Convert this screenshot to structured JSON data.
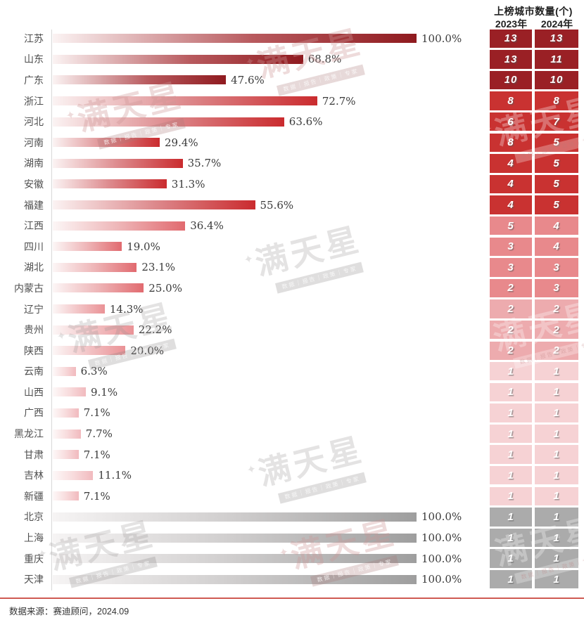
{
  "table": {
    "title": "上榜城市数量(个)",
    "col_2023": "2023年",
    "col_2024": "2024年"
  },
  "chart_data": {
    "type": "bar",
    "orientation": "horizontal",
    "unit": "percent",
    "xlim": [
      0,
      100
    ],
    "columns": [
      "2023年",
      "2024年"
    ],
    "rows": [
      {
        "province": "江苏",
        "pct": 100.0,
        "pct_label": "100.0%",
        "count_2023": 13,
        "count_2024": 13,
        "tier": "g1"
      },
      {
        "province": "山东",
        "pct": 68.8,
        "pct_label": "68.8%",
        "count_2023": 13,
        "count_2024": 11,
        "tier": "g1"
      },
      {
        "province": "广东",
        "pct": 47.6,
        "pct_label": "47.6%",
        "count_2023": 10,
        "count_2024": 10,
        "tier": "g1"
      },
      {
        "province": "浙江",
        "pct": 72.7,
        "pct_label": "72.7%",
        "count_2023": 8,
        "count_2024": 8,
        "tier": "g2"
      },
      {
        "province": "河北",
        "pct": 63.6,
        "pct_label": "63.6%",
        "count_2023": 6,
        "count_2024": 7,
        "tier": "g2"
      },
      {
        "province": "河南",
        "pct": 29.4,
        "pct_label": "29.4%",
        "count_2023": 8,
        "count_2024": 5,
        "tier": "g2"
      },
      {
        "province": "湖南",
        "pct": 35.7,
        "pct_label": "35.7%",
        "count_2023": 4,
        "count_2024": 5,
        "tier": "g2"
      },
      {
        "province": "安徽",
        "pct": 31.3,
        "pct_label": "31.3%",
        "count_2023": 4,
        "count_2024": 5,
        "tier": "g2"
      },
      {
        "province": "福建",
        "pct": 55.6,
        "pct_label": "55.6%",
        "count_2023": 4,
        "count_2024": 5,
        "tier": "g2"
      },
      {
        "province": "江西",
        "pct": 36.4,
        "pct_label": "36.4%",
        "count_2023": 5,
        "count_2024": 4,
        "tier": "g3"
      },
      {
        "province": "四川",
        "pct": 19.0,
        "pct_label": "19.0%",
        "count_2023": 3,
        "count_2024": 4,
        "tier": "g3"
      },
      {
        "province": "湖北",
        "pct": 23.1,
        "pct_label": "23.1%",
        "count_2023": 3,
        "count_2024": 3,
        "tier": "g3"
      },
      {
        "province": "内蒙古",
        "pct": 25.0,
        "pct_label": "25.0%",
        "count_2023": 2,
        "count_2024": 3,
        "tier": "g3"
      },
      {
        "province": "辽宁",
        "pct": 14.3,
        "pct_label": "14.3%",
        "count_2023": 2,
        "count_2024": 2,
        "tier": "g4"
      },
      {
        "province": "贵州",
        "pct": 22.2,
        "pct_label": "22.2%",
        "count_2023": 2,
        "count_2024": 2,
        "tier": "g4"
      },
      {
        "province": "陕西",
        "pct": 20.0,
        "pct_label": "20.0%",
        "count_2023": 2,
        "count_2024": 2,
        "tier": "g4"
      },
      {
        "province": "云南",
        "pct": 6.3,
        "pct_label": "6.3%",
        "count_2023": 1,
        "count_2024": 1,
        "tier": "g5"
      },
      {
        "province": "山西",
        "pct": 9.1,
        "pct_label": "9.1%",
        "count_2023": 1,
        "count_2024": 1,
        "tier": "g5"
      },
      {
        "province": "广西",
        "pct": 7.1,
        "pct_label": "7.1%",
        "count_2023": 1,
        "count_2024": 1,
        "tier": "g5"
      },
      {
        "province": "黑龙江",
        "pct": 7.7,
        "pct_label": "7.7%",
        "count_2023": 1,
        "count_2024": 1,
        "tier": "g5"
      },
      {
        "province": "甘肃",
        "pct": 7.1,
        "pct_label": "7.1%",
        "count_2023": 1,
        "count_2024": 1,
        "tier": "g5"
      },
      {
        "province": "吉林",
        "pct": 11.1,
        "pct_label": "11.1%",
        "count_2023": 1,
        "count_2024": 1,
        "tier": "g5"
      },
      {
        "province": "新疆",
        "pct": 7.1,
        "pct_label": "7.1%",
        "count_2023": 1,
        "count_2024": 1,
        "tier": "g5"
      },
      {
        "province": "北京",
        "pct": 100.0,
        "pct_label": "100.0%",
        "count_2023": 1,
        "count_2024": 1,
        "tier": "g6"
      },
      {
        "province": "上海",
        "pct": 100.0,
        "pct_label": "100.0%",
        "count_2023": 1,
        "count_2024": 1,
        "tier": "g6"
      },
      {
        "province": "重庆",
        "pct": 100.0,
        "pct_label": "100.0%",
        "count_2023": 1,
        "count_2024": 1,
        "tier": "g6"
      },
      {
        "province": "天津",
        "pct": 100.0,
        "pct_label": "100.0%",
        "count_2023": 1,
        "count_2024": 1,
        "tier": "g6"
      }
    ],
    "tier_colors": {
      "g1": "#9a2025",
      "g2": "#c93231",
      "g3": "#e8898c",
      "g4": "#edabae",
      "g5": "#f6d2d4",
      "g6": "#ababab"
    }
  },
  "watermark": {
    "star": "✦",
    "text": "满天星",
    "tagline": "数据｜报告｜政策｜专家"
  },
  "footer": {
    "source": "数据来源：赛迪顾问，2024.09",
    "line_color": "#cf5a52"
  }
}
